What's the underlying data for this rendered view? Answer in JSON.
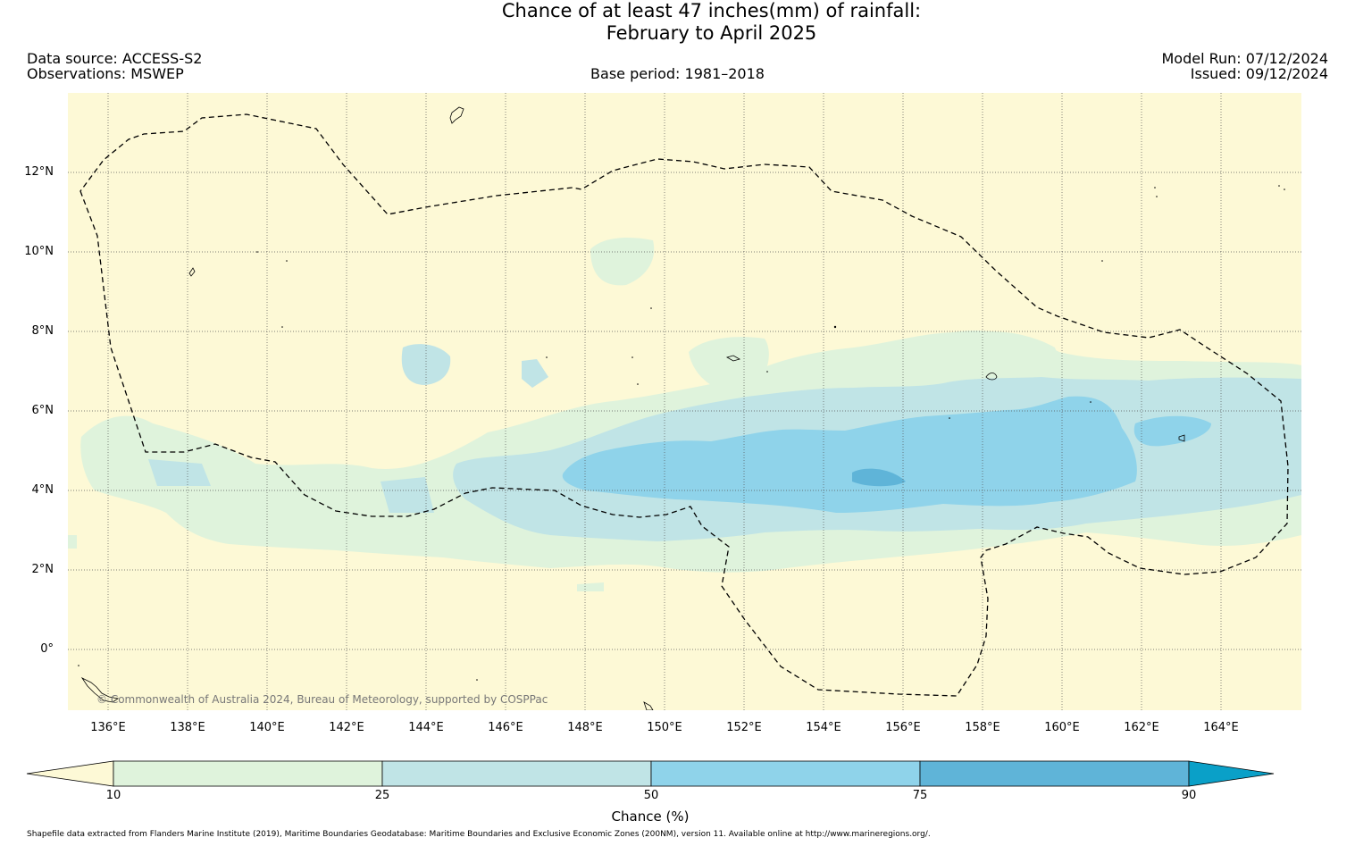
{
  "header": {
    "title_line1": "Chance of at least 47 inches(mm) of rainfall:",
    "title_line2": "February to April 2025",
    "data_source": "Data source: ACCESS-S2",
    "observations": "Observations: MSWEP",
    "base_period": "Base period: 1981–2018",
    "model_run": "Model Run: 07/12/2024",
    "issued": "Issued: 09/12/2024"
  },
  "map": {
    "copyright": "© Commonwealth of Australia 2024, Bureau of Meteorology, supported by COSPPac",
    "lon_range": [
      135,
      166
    ],
    "lat_range": [
      -1.5,
      14
    ],
    "lat_labels": [
      "12°N",
      "10°N",
      "8°N",
      "6°N",
      "4°N",
      "2°N",
      "0°"
    ],
    "lon_labels": [
      "136°E",
      "138°E",
      "140°E",
      "142°E",
      "144°E",
      "146°E",
      "148°E",
      "150°E",
      "152°E",
      "154°E",
      "156°E",
      "158°E",
      "160°E",
      "162°E",
      "164°E"
    ],
    "colors": {
      "below_10": "#fdf9d6",
      "10_25": "#dff3dc",
      "25_50": "#c0e4e6",
      "50_75": "#8fd3ea",
      "75_90": "#5fb4d8",
      "above_90": "#0aa0c8"
    }
  },
  "colorbar": {
    "ticks": [
      "10",
      "25",
      "50",
      "75",
      "90"
    ],
    "label": "Chance (%)"
  },
  "footnote": "Shapefile data extracted from Flanders Marine Institute (2019), Maritime Boundaries Geodatabase: Maritime Boundaries and Exclusive Economic Zones (200NM), version 11. Available online at http://www.marineregions.org/."
}
